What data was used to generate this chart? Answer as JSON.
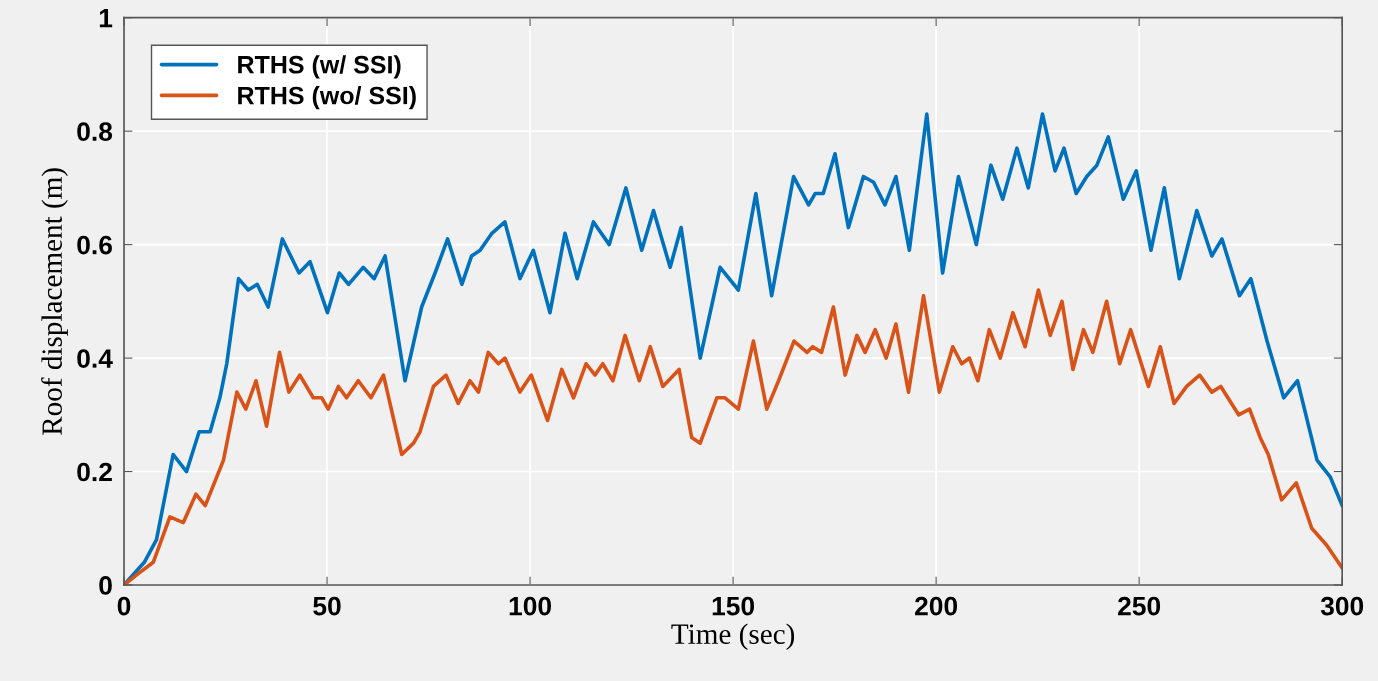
{
  "chart_data": {
    "type": "line",
    "xlabel": "Time (sec)",
    "ylabel": "Roof displacement (m)",
    "xlim": [
      0,
      300
    ],
    "xticks": [
      0,
      50,
      100,
      150,
      200,
      250,
      300
    ],
    "ylim": [
      0,
      1
    ],
    "yticks": [
      0,
      0.2,
      0.4,
      0.6,
      0.8,
      1
    ],
    "grid": true,
    "legend": "top left",
    "line_style": "solid",
    "marker": "none",
    "series": [
      {
        "name": "RTHS (w/ SSI)",
        "color": "#0072bd",
        "x": [
          0,
          5,
          8,
          12.1,
          15.4,
          18.5,
          21.2,
          23.6,
          25.3,
          28.2,
          30.6,
          32.8,
          35.5,
          39,
          43.1,
          45.8,
          50.1,
          53,
          55.3,
          58.9,
          61.6,
          64.3,
          69.2,
          73.3,
          76.6,
          79.7,
          83.2,
          85.6,
          87.7,
          90.6,
          93.8,
          97.5,
          100.8,
          104.9,
          108.6,
          111.6,
          115.6,
          119.5,
          123.6,
          127.5,
          130.4,
          134.5,
          137.2,
          141.9,
          146.8,
          151.3,
          155.6,
          159.5,
          164.9,
          168.6,
          170.2,
          172.2,
          175.1,
          178.4,
          182.1,
          184.6,
          187.4,
          190.1,
          193.4,
          197.7,
          201.6,
          205.5,
          209.9,
          213.5,
          216.4,
          219.9,
          222.7,
          226.2,
          229.3,
          231.5,
          234.5,
          237.1,
          239.6,
          242.4,
          246.1,
          249.3,
          252.9,
          256.2,
          259.9,
          264.2,
          267.9,
          270.4,
          274.7,
          277.5,
          281.5,
          285.6,
          289,
          293.8,
          297.1,
          300
        ],
        "values": [
          0,
          0.04,
          0.08,
          0.23,
          0.2,
          0.27,
          0.27,
          0.33,
          0.39,
          0.54,
          0.52,
          0.53,
          0.49,
          0.61,
          0.55,
          0.57,
          0.48,
          0.55,
          0.53,
          0.56,
          0.54,
          0.58,
          0.36,
          0.49,
          0.55,
          0.61,
          0.53,
          0.58,
          0.59,
          0.62,
          0.64,
          0.54,
          0.59,
          0.48,
          0.62,
          0.54,
          0.64,
          0.6,
          0.7,
          0.59,
          0.66,
          0.56,
          0.63,
          0.4,
          0.56,
          0.52,
          0.69,
          0.51,
          0.72,
          0.67,
          0.69,
          0.69,
          0.76,
          0.63,
          0.72,
          0.71,
          0.67,
          0.72,
          0.59,
          0.83,
          0.55,
          0.72,
          0.6,
          0.74,
          0.68,
          0.77,
          0.7,
          0.83,
          0.73,
          0.77,
          0.69,
          0.72,
          0.74,
          0.79,
          0.68,
          0.73,
          0.59,
          0.7,
          0.54,
          0.66,
          0.58,
          0.61,
          0.51,
          0.54,
          0.43,
          0.33,
          0.36,
          0.22,
          0.19,
          0.14
        ]
      },
      {
        "name": "RTHS (wo/ SSI)",
        "color": "#d95319",
        "x": [
          0,
          3.5,
          7.2,
          11.3,
          14.6,
          17.7,
          20,
          24.5,
          27.8,
          30,
          32.5,
          35.1,
          38.3,
          40.6,
          43.3,
          46.6,
          48.7,
          50.3,
          52.8,
          54.8,
          57.7,
          60.8,
          63.9,
          68.4,
          71.3,
          72.9,
          76.2,
          79.3,
          82.3,
          85.2,
          87.3,
          89.7,
          92.2,
          93.8,
          97.5,
          100.3,
          104.3,
          107.8,
          110.7,
          113.8,
          116,
          117.9,
          120.4,
          123.4,
          126.9,
          129.6,
          132.7,
          136.7,
          139.8,
          141.9,
          146,
          148,
          151.3,
          155,
          158.3,
          161.2,
          165,
          168.2,
          169.6,
          171.8,
          174.7,
          177.6,
          180.5,
          182.5,
          185,
          187.7,
          190.1,
          193.2,
          196.9,
          200.8,
          204.1,
          206.3,
          208.2,
          210.3,
          213.1,
          215.8,
          218.9,
          221.9,
          225.2,
          228.1,
          231,
          233.7,
          236.3,
          238.6,
          242,
          245.2,
          247.9,
          252.3,
          255.2,
          258.6,
          261.7,
          264.9,
          267.9,
          270.1,
          274.5,
          277.2,
          279.8,
          281.8,
          285.1,
          288.7,
          292.5,
          296.2,
          300
        ],
        "values": [
          0,
          0.02,
          0.04,
          0.12,
          0.11,
          0.16,
          0.14,
          0.22,
          0.34,
          0.31,
          0.36,
          0.28,
          0.41,
          0.34,
          0.37,
          0.33,
          0.33,
          0.31,
          0.35,
          0.33,
          0.36,
          0.33,
          0.37,
          0.23,
          0.25,
          0.27,
          0.35,
          0.37,
          0.32,
          0.36,
          0.34,
          0.41,
          0.39,
          0.4,
          0.34,
          0.37,
          0.29,
          0.38,
          0.33,
          0.39,
          0.37,
          0.39,
          0.36,
          0.44,
          0.36,
          0.42,
          0.35,
          0.38,
          0.26,
          0.25,
          0.33,
          0.33,
          0.31,
          0.43,
          0.31,
          0.36,
          0.43,
          0.41,
          0.42,
          0.41,
          0.49,
          0.37,
          0.44,
          0.41,
          0.45,
          0.4,
          0.46,
          0.34,
          0.51,
          0.34,
          0.42,
          0.39,
          0.4,
          0.36,
          0.45,
          0.4,
          0.48,
          0.42,
          0.52,
          0.44,
          0.5,
          0.38,
          0.45,
          0.41,
          0.5,
          0.39,
          0.45,
          0.35,
          0.42,
          0.32,
          0.35,
          0.37,
          0.34,
          0.35,
          0.3,
          0.31,
          0.26,
          0.23,
          0.15,
          0.18,
          0.1,
          0.07,
          0.03
        ]
      }
    ]
  }
}
